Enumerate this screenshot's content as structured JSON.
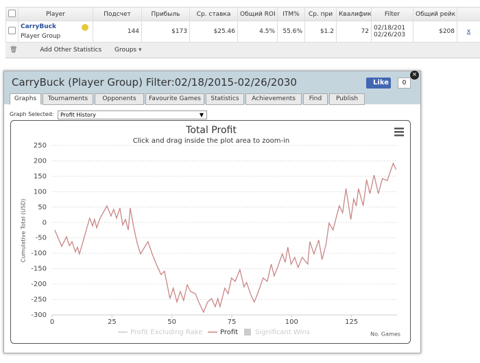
{
  "table": {
    "headers": [
      "Player",
      "Подсчет",
      "Прибыль",
      "Ср. ставка",
      "Общий ROI",
      "ITM%",
      "Ср. при",
      "Квалифика",
      "Filter",
      "Общий рейк"
    ],
    "row": {
      "player": "CarryBuck",
      "group": "Player Group",
      "cells": [
        "144",
        "$173",
        "$25.46",
        "4.5%",
        "55.6%",
        "$1.2",
        "72"
      ],
      "filter": [
        "02/18/201",
        "02/26/203"
      ],
      "rake": "$208",
      "remove": "x"
    }
  },
  "toolbar": {
    "add": "Add Other Statistics",
    "groups": "Groups"
  },
  "panel": {
    "title": "CarryBuck (Player Group) Filter:02/18/2015-02/26/2030",
    "like": "Like",
    "like_count": "0",
    "tabs": [
      "Graphs",
      "Tournaments",
      "Opponents",
      "Favourite Games",
      "Statistics",
      "Achievements",
      "Find",
      "Publish"
    ],
    "graph_selected_label": "Graph Selected:",
    "graph_selected": "Profit History"
  },
  "chart_data": {
    "type": "line",
    "title": "Total Profit",
    "subtitle": "Click and drag inside the plot area to zoom-in",
    "y_label": "Cumulative Total (USD)",
    "x_label": "No. Games",
    "x": [
      1.1,
      4.0,
      6.0,
      7.2,
      8.3,
      9.7,
      10.6,
      11.4,
      15.7,
      16.9,
      17.7,
      18.6,
      20.0,
      22.9,
      24.6,
      25.7,
      26.9,
      28.3,
      29.5,
      30.6,
      31.8,
      32.6,
      34.0,
      35.4,
      36.9,
      38.3,
      40.0,
      41.8,
      43.5,
      45.5,
      46.9,
      49.2,
      50.6,
      52.1,
      53.5,
      54.9,
      56.4,
      57.8,
      59.8,
      61.2,
      63.2,
      64.9,
      66.6,
      68.1,
      69.2,
      70.1,
      72.1,
      73.5,
      74.9,
      76.4,
      78.4,
      80.1,
      81.2,
      83.0,
      84.4,
      85.8,
      88.1,
      89.8,
      91.5,
      92.7,
      94.1,
      96.1,
      97.3,
      98.4,
      99.8,
      101.3,
      102.7,
      104.4,
      106.7,
      107.6,
      109.3,
      111.3,
      112.7,
      114.4,
      115.6,
      117.3,
      118.4,
      119.9,
      121.3,
      122.7,
      124.7,
      125.9,
      127.0,
      127.9,
      129.9,
      131.3,
      132.7,
      134.4,
      136.2,
      137.9,
      139.9,
      140.7,
      142.4,
      143.6
    ],
    "series": [
      {
        "name": "Profit",
        "color": "#c98585",
        "values": [
          -24,
          -77,
          -46,
          -75,
          -62,
          -95,
          -80,
          -102,
          14,
          -11,
          10,
          -17,
          14,
          54,
          21,
          43,
          14,
          47,
          -8,
          10,
          -24,
          47,
          -13,
          -64,
          -102,
          -84,
          -62,
          -102,
          -135,
          -169,
          -158,
          -247,
          -213,
          -258,
          -224,
          -253,
          -202,
          -224,
          -231,
          -258,
          -291,
          -258,
          -247,
          -273,
          -247,
          -273,
          -213,
          -231,
          -180,
          -191,
          -153,
          -209,
          -195,
          -235,
          -258,
          -231,
          -180,
          -191,
          -135,
          -173,
          -146,
          -102,
          -129,
          -80,
          -135,
          -113,
          -146,
          -113,
          -135,
          -62,
          -102,
          -57,
          -120,
          -69,
          -2,
          -24,
          10,
          54,
          32,
          110,
          10,
          76,
          54,
          110,
          54,
          139,
          94,
          154,
          94,
          143,
          136,
          154,
          192,
          172
        ]
      }
    ],
    "legend_items": [
      {
        "name": "Profit Excluding Rake",
        "symbol": "line"
      },
      {
        "name": "Significant Wins",
        "symbol": "square"
      }
    ],
    "xlim": [
      0,
      144
    ],
    "ylim": [
      -300,
      250
    ],
    "xticks": [
      0,
      25,
      50,
      75,
      100,
      125
    ],
    "yticks": [
      -300,
      -250,
      -200,
      -150,
      -100,
      -50,
      0,
      50,
      100,
      150,
      200,
      250
    ],
    "grid": true
  }
}
